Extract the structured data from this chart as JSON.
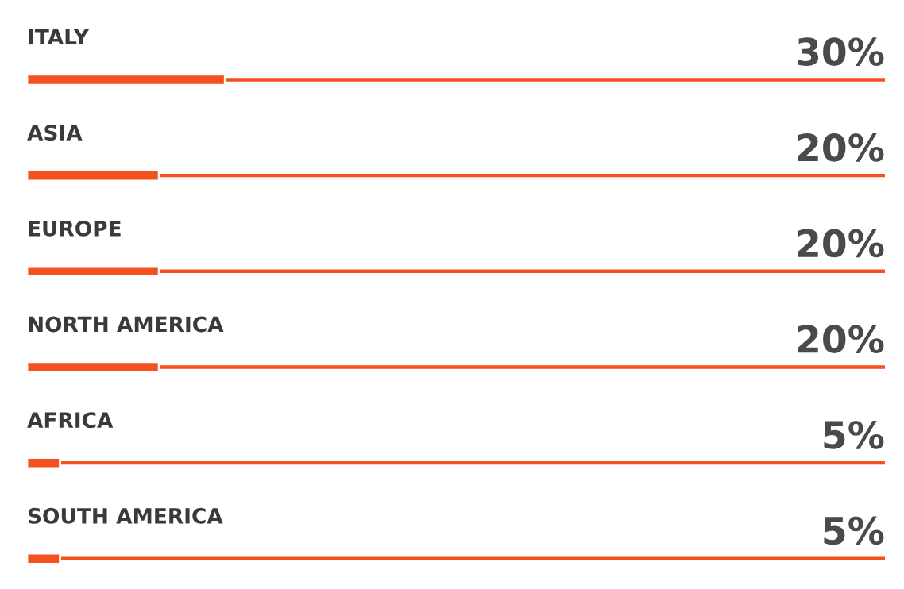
{
  "chart_data": {
    "type": "bar",
    "orientation": "horizontal",
    "categories": [
      "ITALY",
      "ASIA",
      "EUROPE",
      "NORTH AMERICA",
      "AFRICA",
      "SOUTH AMERICA"
    ],
    "values": [
      30,
      20,
      20,
      20,
      5,
      5
    ],
    "value_labels": [
      "30%",
      "20%",
      "20%",
      "20%",
      "5%",
      "5%"
    ],
    "color": "#f4511e",
    "xlim": [
      0,
      130
    ]
  }
}
